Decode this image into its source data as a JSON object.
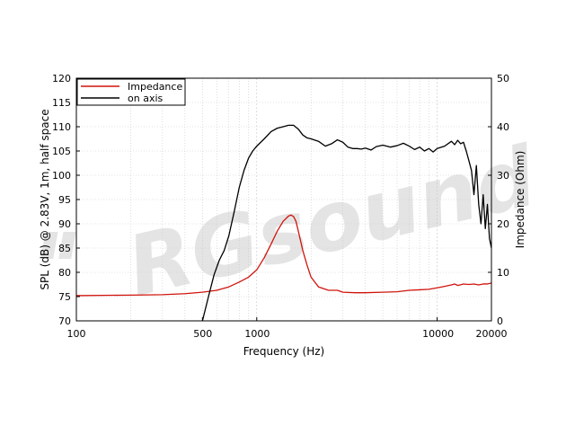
{
  "chart_data": {
    "type": "line",
    "xlabel": "Frequency (Hz)",
    "ylabel": "SPL (dB) @ 2.83V, 1m, half space",
    "y2label": "Impedance (Ohm)",
    "x_scale": "log",
    "xlim": [
      100,
      20000
    ],
    "ylim": [
      70,
      120
    ],
    "y2lim": [
      0,
      50
    ],
    "grid": true,
    "legend_position": "top-left",
    "x_tick_labels": [
      "100",
      "500",
      "1000",
      "10000",
      "20000"
    ],
    "y_tick_labels": [
      "70",
      "75",
      "80",
      "85",
      "90",
      "95",
      "100",
      "105",
      "110",
      "115",
      "120"
    ],
    "y2_tick_labels": [
      "0",
      "10",
      "20",
      "30",
      "40",
      "50"
    ],
    "watermark": "RGsound",
    "series": [
      {
        "name": "Impedance",
        "axis": "right",
        "color": "#d0140c",
        "x": [
          100,
          200,
          300,
          400,
          500,
          600,
          700,
          800,
          900,
          1000,
          1100,
          1200,
          1300,
          1400,
          1500,
          1550,
          1600,
          1650,
          1700,
          1800,
          1900,
          2000,
          2200,
          2500,
          2800,
          3000,
          3500,
          4000,
          5000,
          6000,
          7000,
          8000,
          9000,
          10000,
          11000,
          12000,
          12500,
          13000,
          14000,
          15000,
          16000,
          17000,
          18000,
          19000,
          20000
        ],
        "y": [
          5.2,
          5.3,
          5.4,
          5.6,
          5.9,
          6.3,
          7.0,
          8.0,
          9.0,
          10.5,
          13.0,
          15.8,
          18.5,
          20.5,
          21.6,
          21.8,
          21.5,
          20.5,
          18.5,
          14.5,
          11.5,
          9.0,
          7.0,
          6.3,
          6.3,
          5.9,
          5.8,
          5.8,
          5.9,
          6.0,
          6.3,
          6.4,
          6.5,
          6.8,
          7.1,
          7.4,
          7.6,
          7.3,
          7.6,
          7.5,
          7.6,
          7.4,
          7.6,
          7.6,
          7.8
        ]
      },
      {
        "name": "on axis",
        "axis": "left",
        "color": "#000000",
        "x": [
          500,
          540,
          580,
          620,
          660,
          700,
          750,
          800,
          850,
          900,
          950,
          1000,
          1100,
          1200,
          1300,
          1400,
          1500,
          1600,
          1700,
          1800,
          1900,
          2000,
          2200,
          2400,
          2600,
          2800,
          3000,
          3200,
          3400,
          3600,
          3800,
          4000,
          4300,
          4600,
          5000,
          5500,
          6000,
          6500,
          7000,
          7500,
          8000,
          8500,
          9000,
          9500,
          10000,
          11000,
          12000,
          12500,
          13000,
          13500,
          14000,
          14500,
          15000,
          15500,
          16000,
          16500,
          17000,
          17500,
          18000,
          18500,
          19000,
          19500,
          20000
        ],
        "y": [
          70.0,
          75.0,
          79.5,
          82.5,
          84.5,
          87.5,
          92.5,
          97.5,
          101.0,
          103.5,
          105.0,
          106.0,
          107.5,
          109.0,
          109.7,
          110.0,
          110.3,
          110.3,
          109.5,
          108.3,
          107.7,
          107.5,
          107.0,
          106.0,
          106.5,
          107.3,
          106.8,
          105.8,
          105.5,
          105.5,
          105.4,
          105.6,
          105.2,
          105.9,
          106.2,
          105.8,
          106.1,
          106.6,
          106.0,
          105.3,
          105.8,
          105.0,
          105.5,
          104.8,
          105.5,
          106.0,
          107.0,
          106.3,
          107.2,
          106.5,
          106.8,
          105.0,
          103.0,
          101.0,
          96.0,
          102.0,
          94.0,
          90.0,
          96.0,
          89.0,
          94.0,
          87.0,
          85.0
        ]
      }
    ]
  }
}
